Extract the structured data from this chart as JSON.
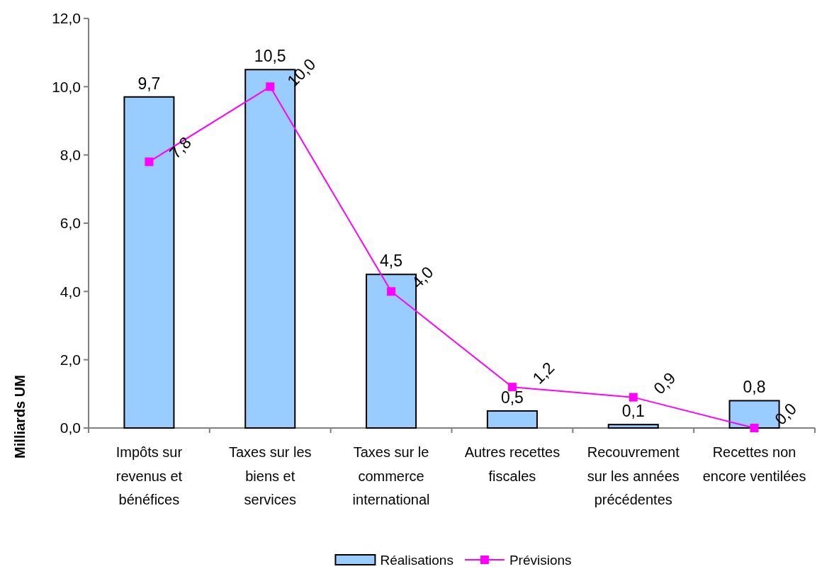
{
  "chart_data": {
    "type": "bar",
    "ylabel": "Milliards UM",
    "categories": [
      "Impôts sur revenus et bénéfices",
      "Taxes sur les biens et services",
      "Taxes sur le commerce international",
      "Autres recettes fiscales",
      "Recouvrement sur les années précédentes",
      "Recettes non encore ventilées"
    ],
    "series": [
      {
        "name": "Réalisations",
        "color": "#99ccff",
        "values": [
          9.7,
          10.5,
          4.5,
          0.5,
          0.1,
          0.8
        ],
        "value_labels": [
          "9,7",
          "10,5",
          "4,5",
          "0,5",
          "0,1",
          "0,8"
        ]
      },
      {
        "name": "Prévisions",
        "type": "line",
        "color": "#ff00ff",
        "marker": "square",
        "values": [
          7.8,
          10.0,
          4.0,
          1.2,
          0.9,
          0.0
        ],
        "value_labels": [
          "7,8",
          "10,0",
          "4,0",
          "1,2",
          "0,9",
          "0,0"
        ]
      }
    ],
    "ylim": [
      0,
      12
    ],
    "yticks": [
      {
        "value": 0,
        "label": "0,0"
      },
      {
        "value": 2,
        "label": "2,0"
      },
      {
        "value": 4,
        "label": "4,0"
      },
      {
        "value": 6,
        "label": "6,0"
      },
      {
        "value": 8,
        "label": "8,0"
      },
      {
        "value": 10,
        "label": "10,0"
      },
      {
        "value": 12,
        "label": "12,0"
      }
    ],
    "legend": "bottom"
  }
}
